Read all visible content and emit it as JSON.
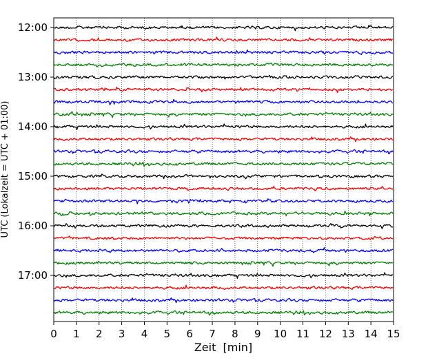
{
  "chart_data": {
    "type": "line",
    "title": "",
    "xlabel": "Zeit  [min]",
    "ylabel": "UTC (Lokalzeit = UTC + 01:00)",
    "xlim": [
      0,
      15
    ],
    "x_ticks": [
      "0",
      "1",
      "2",
      "3",
      "4",
      "5",
      "6",
      "7",
      "8",
      "9",
      "10",
      "11",
      "12",
      "13",
      "14",
      "15"
    ],
    "y_tick_labels": [
      "12:00",
      "13:00",
      "14:00",
      "15:00",
      "16:00",
      "17:00"
    ],
    "grid": "vertical dotted lines at each minute",
    "colors": [
      "#000000",
      "#ff0000",
      "#0000ff",
      "#008000"
    ],
    "series": [
      {
        "time": "12:00",
        "color": "#000000"
      },
      {
        "time": "12:15",
        "color": "#ff0000"
      },
      {
        "time": "12:30",
        "color": "#0000ff"
      },
      {
        "time": "12:45",
        "color": "#008000"
      },
      {
        "time": "13:00",
        "color": "#000000"
      },
      {
        "time": "13:15",
        "color": "#ff0000"
      },
      {
        "time": "13:30",
        "color": "#0000ff"
      },
      {
        "time": "13:45",
        "color": "#008000"
      },
      {
        "time": "14:00",
        "color": "#000000"
      },
      {
        "time": "14:15",
        "color": "#ff0000"
      },
      {
        "time": "14:30",
        "color": "#0000ff"
      },
      {
        "time": "14:45",
        "color": "#008000"
      },
      {
        "time": "15:00",
        "color": "#000000"
      },
      {
        "time": "15:15",
        "color": "#ff0000"
      },
      {
        "time": "15:30",
        "color": "#0000ff"
      },
      {
        "time": "15:45",
        "color": "#008000"
      },
      {
        "time": "16:00",
        "color": "#000000"
      },
      {
        "time": "16:15",
        "color": "#ff0000"
      },
      {
        "time": "16:30",
        "color": "#0000ff"
      },
      {
        "time": "16:45",
        "color": "#008000"
      },
      {
        "time": "17:00",
        "color": "#000000"
      },
      {
        "time": "17:15",
        "color": "#ff0000"
      },
      {
        "time": "17:30",
        "color": "#0000ff"
      },
      {
        "time": "17:45",
        "color": "#008000"
      }
    ]
  }
}
